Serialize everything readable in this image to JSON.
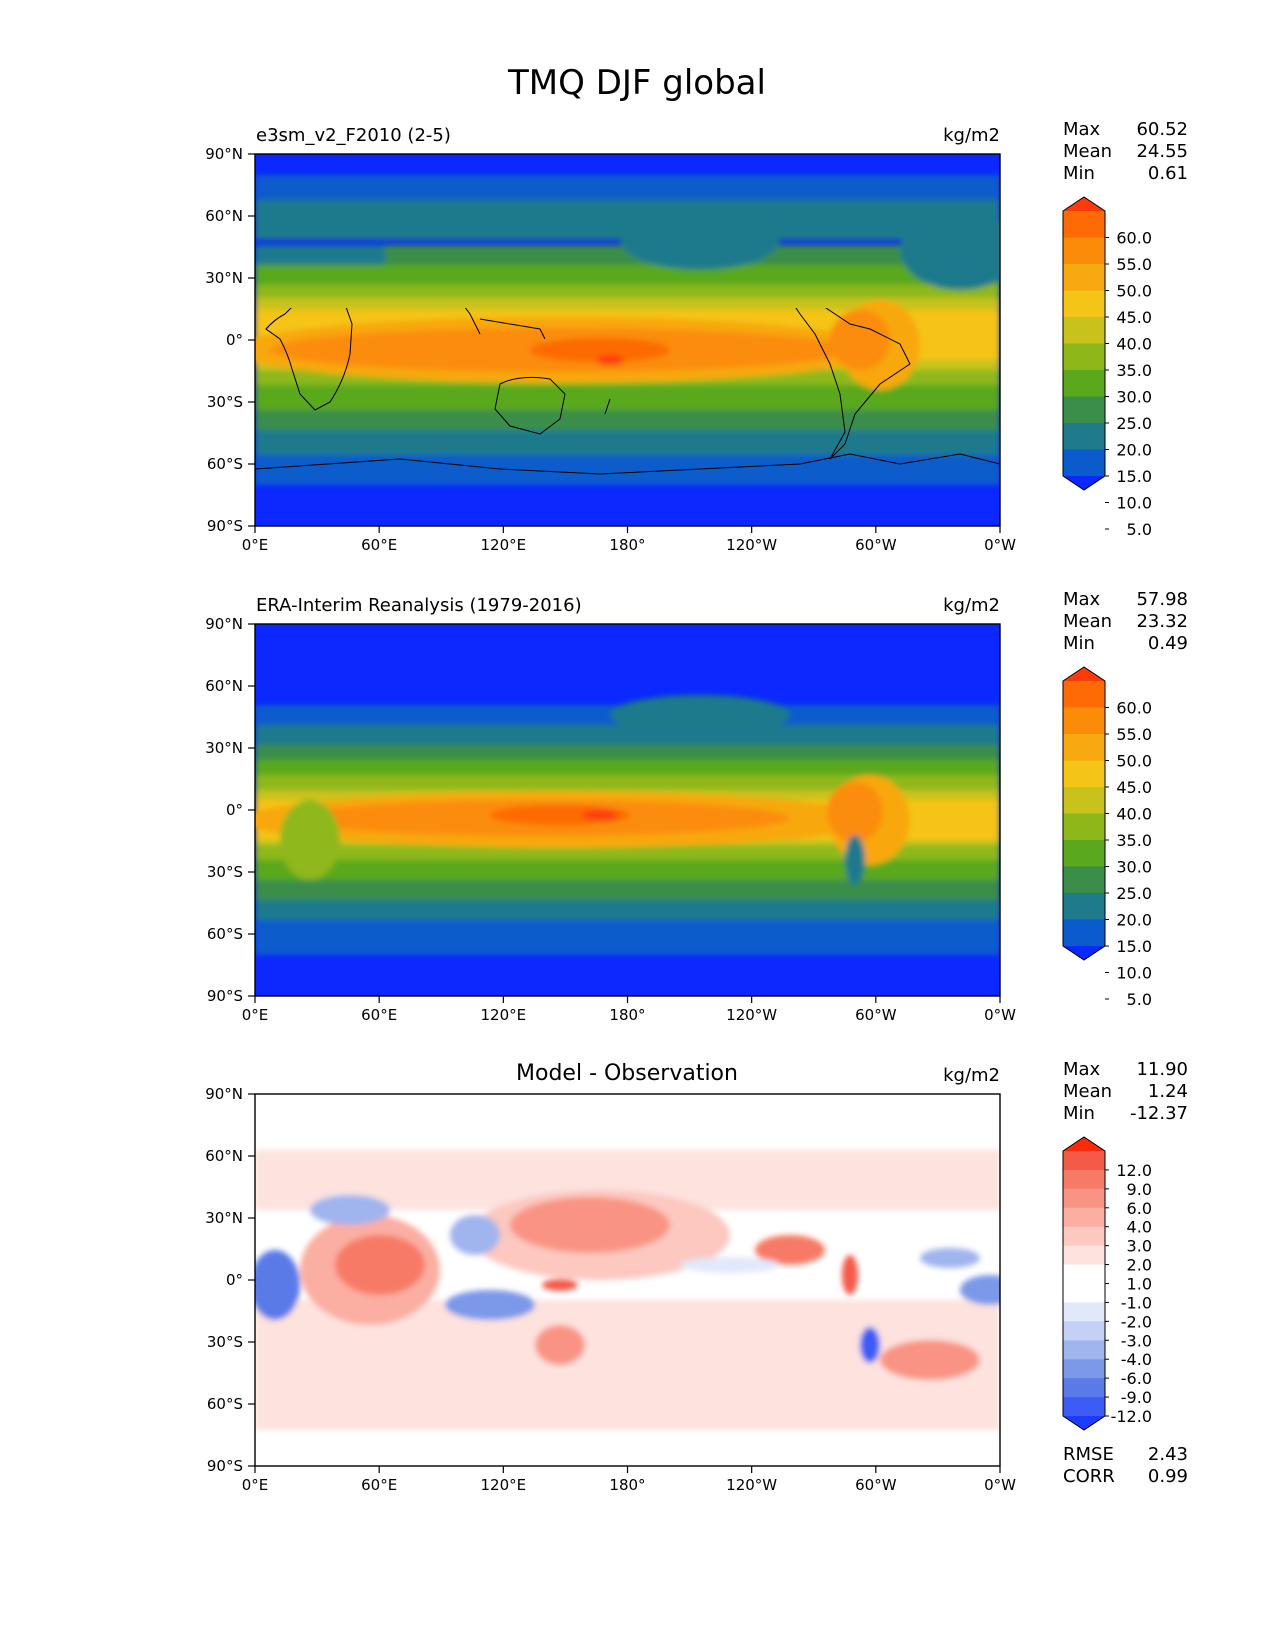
{
  "title": "TMQ DJF global",
  "lon_ticks": [
    "0°E",
    "60°E",
    "120°E",
    "180°",
    "120°W",
    "60°W",
    "0°W"
  ],
  "lat_ticks": [
    "90°N",
    "60°N",
    "30°N",
    "0°",
    "30°S",
    "60°S",
    "90°S"
  ],
  "stat_labels": [
    "Max",
    "Mean",
    "Min"
  ],
  "panels": [
    {
      "id": "model",
      "left_title": "e3sm_v2_F2010 (2-5)",
      "center_title": "",
      "units": "kg/m2",
      "stats": [
        "60.52",
        "24.55",
        "0.61"
      ],
      "colorbar": {
        "colors": [
          "#0a28ff",
          "#0a5ccc",
          "#1f7a8c",
          "#3a8e4a",
          "#5aa81e",
          "#8eb81a",
          "#c8c21c",
          "#f5c418",
          "#f8a810",
          "#fb8c0a",
          "#fd6a06",
          "#ff3a0a"
        ],
        "labels": [
          "60.0",
          "55.0",
          "50.0",
          "45.0",
          "40.0",
          "35.0",
          "30.0",
          "25.0",
          "20.0",
          "15.0",
          "10.0",
          "5.0"
        ]
      }
    },
    {
      "id": "obs",
      "left_title": "ERA-Interim Reanalysis (1979-2016)",
      "center_title": "",
      "units": "kg/m2",
      "stats": [
        "57.98",
        "23.32",
        "0.49"
      ],
      "colorbar": {
        "colors": [
          "#0a28ff",
          "#0a5ccc",
          "#1f7a8c",
          "#3a8e4a",
          "#5aa81e",
          "#8eb81a",
          "#c8c21c",
          "#f5c418",
          "#f8a810",
          "#fb8c0a",
          "#fd6a06",
          "#ff3a0a"
        ],
        "labels": [
          "60.0",
          "55.0",
          "50.0",
          "45.0",
          "40.0",
          "35.0",
          "30.0",
          "25.0",
          "20.0",
          "15.0",
          "10.0",
          "5.0"
        ]
      }
    },
    {
      "id": "diff",
      "left_title": "",
      "center_title": "Model - Observation",
      "units": "kg/m2",
      "stats": [
        "11.90",
        "1.24",
        "-12.37"
      ],
      "colorbar": {
        "colors": [
          "#1e3cff",
          "#3c5cf5",
          "#5a7ae8",
          "#7c98e8",
          "#a0b4ee",
          "#c4d0f5",
          "#e2e8fb",
          "#ffffff",
          "#ffffff",
          "#fde2de",
          "#fcc8c0",
          "#fbaea2",
          "#f99484",
          "#f77a66",
          "#f45a48",
          "#ff2a0a"
        ],
        "labels": [
          "12.0",
          "9.0",
          "6.0",
          "4.0",
          "3.0",
          "2.0",
          "1.0",
          "-1.0",
          "-2.0",
          "-3.0",
          "-4.0",
          "-6.0",
          "-9.0",
          "-12.0"
        ]
      },
      "metrics": [
        {
          "label": "RMSE",
          "value": "2.43"
        },
        {
          "label": "CORR",
          "value": "0.99"
        }
      ]
    }
  ],
  "map_data": {
    "projection": "plate-carree",
    "central_longitude": 180,
    "lon_range": [
      0,
      360
    ],
    "lat_range": [
      -90,
      90
    ],
    "variable": "TMQ",
    "season": "DJF"
  }
}
